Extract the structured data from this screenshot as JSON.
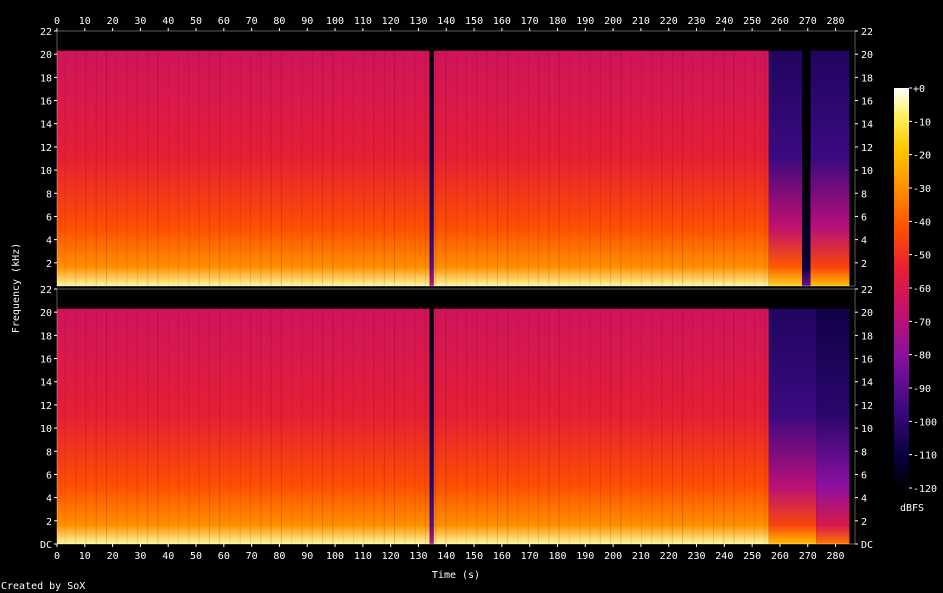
{
  "chart_data": {
    "type": "heatmap",
    "title": "",
    "xlabel": "Time (s)",
    "ylabel": "Frequency (kHz)",
    "colorbar_label": "dBFS",
    "credit": "Created by SoX",
    "xlim": [
      0,
      287
    ],
    "ylim": [
      0,
      22
    ],
    "x_ticks": [
      "0",
      "10",
      "20",
      "30",
      "40",
      "50",
      "60",
      "70",
      "80",
      "90",
      "100",
      "110",
      "120",
      "130",
      "140",
      "150",
      "160",
      "170",
      "180",
      "190",
      "200",
      "210",
      "220",
      "230",
      "240",
      "250",
      "260",
      "270",
      "280"
    ],
    "y_ticks_top": [
      "2",
      "4",
      "6",
      "8",
      "10",
      "12",
      "14",
      "16",
      "18",
      "20",
      "22"
    ],
    "y_ticks_bottom": [
      "DC",
      "2",
      "4",
      "6",
      "8",
      "10",
      "12",
      "14",
      "16",
      "18",
      "20",
      "22"
    ],
    "colorbar_ticks": [
      "+0",
      "-10",
      "-20",
      "-30",
      "-40",
      "-50",
      "-60",
      "-70",
      "-80",
      "-90",
      "-100",
      "-110",
      "-120"
    ],
    "colorbar_range": [
      -120,
      0
    ],
    "channels": [
      {
        "cutoff_khz": 20.3,
        "segments": [
          {
            "t0": 0,
            "t1": 134,
            "hf_dbfs": -55,
            "lf_dbfs": -30
          },
          {
            "t0": 134,
            "t1": 135.5,
            "hf_dbfs": -110,
            "lf_dbfs": -90
          },
          {
            "t0": 135.5,
            "t1": 256,
            "hf_dbfs": -55,
            "lf_dbfs": -30
          },
          {
            "t0": 256,
            "t1": 268,
            "hf_dbfs": -95,
            "lf_dbfs": -40
          },
          {
            "t0": 268,
            "t1": 271,
            "hf_dbfs": -120,
            "lf_dbfs": -110
          },
          {
            "t0": 271,
            "t1": 285,
            "hf_dbfs": -95,
            "lf_dbfs": -45
          }
        ]
      },
      {
        "cutoff_khz": 20.3,
        "segments": [
          {
            "t0": 0,
            "t1": 134,
            "hf_dbfs": -55,
            "lf_dbfs": -30
          },
          {
            "t0": 134,
            "t1": 135.5,
            "hf_dbfs": -110,
            "lf_dbfs": -90
          },
          {
            "t0": 135.5,
            "t1": 256,
            "hf_dbfs": -55,
            "lf_dbfs": -30
          },
          {
            "t0": 256,
            "t1": 273,
            "hf_dbfs": -95,
            "lf_dbfs": -45
          },
          {
            "t0": 273,
            "t1": 285,
            "hf_dbfs": -100,
            "lf_dbfs": -60
          }
        ]
      }
    ]
  }
}
